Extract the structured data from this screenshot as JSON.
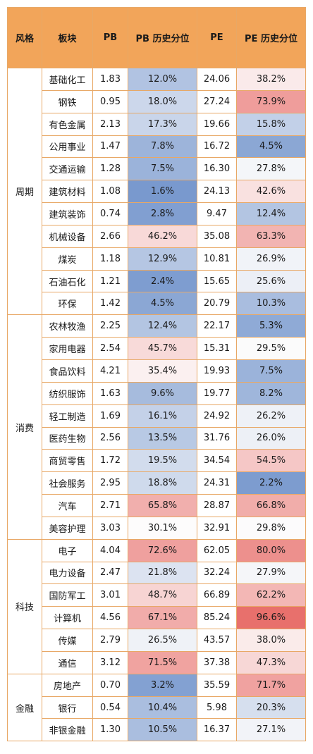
{
  "table": {
    "headers": [
      "风格",
      "板块",
      "PB",
      "PB 历史分位",
      "PE",
      "PE 历史分位"
    ],
    "groups": [
      {
        "style": "周期",
        "rows": [
          [
            "基础化工",
            "1.83",
            "12.0%",
            "24.06",
            "38.2%"
          ],
          [
            "钢铁",
            "0.95",
            "18.0%",
            "27.24",
            "73.9%"
          ],
          [
            "有色金属",
            "2.13",
            "17.3%",
            "19.66",
            "15.8%"
          ],
          [
            "公用事业",
            "1.47",
            "7.8%",
            "16.72",
            "4.5%"
          ],
          [
            "交通运输",
            "1.28",
            "7.5%",
            "16.30",
            "27.8%"
          ],
          [
            "建筑材料",
            "1.08",
            "1.6%",
            "24.13",
            "42.6%"
          ],
          [
            "建筑装饰",
            "0.74",
            "2.8%",
            "9.47",
            "12.4%"
          ],
          [
            "机械设备",
            "2.66",
            "46.2%",
            "35.08",
            "63.3%"
          ],
          [
            "煤炭",
            "1.18",
            "12.9%",
            "10.81",
            "26.9%"
          ],
          [
            "石油石化",
            "1.21",
            "2.4%",
            "15.65",
            "25.6%"
          ],
          [
            "环保",
            "1.42",
            "4.5%",
            "20.79",
            "10.3%"
          ]
        ]
      },
      {
        "style": "消费",
        "rows": [
          [
            "农林牧渔",
            "2.25",
            "12.4%",
            "22.17",
            "5.3%"
          ],
          [
            "家用电器",
            "2.54",
            "45.7%",
            "15.31",
            "29.5%"
          ],
          [
            "食品饮料",
            "4.21",
            "35.4%",
            "19.93",
            "7.5%"
          ],
          [
            "纺织服饰",
            "1.63",
            "9.6%",
            "19.77",
            "8.2%"
          ],
          [
            "轻工制造",
            "1.69",
            "16.1%",
            "24.92",
            "26.2%"
          ],
          [
            "医药生物",
            "2.56",
            "13.5%",
            "31.76",
            "26.0%"
          ],
          [
            "商贸零售",
            "1.72",
            "19.5%",
            "34.54",
            "54.5%"
          ],
          [
            "社会服务",
            "2.95",
            "18.8%",
            "24.31",
            "2.2%"
          ],
          [
            "汽车",
            "2.71",
            "65.8%",
            "28.87",
            "66.8%"
          ],
          [
            "美容护理",
            "3.03",
            "30.1%",
            "32.91",
            "29.8%"
          ]
        ]
      },
      {
        "style": "科技",
        "rows": [
          [
            "电子",
            "4.04",
            "72.6%",
            "62.05",
            "80.0%"
          ],
          [
            "电力设备",
            "2.47",
            "21.8%",
            "32.24",
            "27.9%"
          ],
          [
            "国防军工",
            "3.01",
            "48.7%",
            "66.89",
            "62.2%"
          ],
          [
            "计算机",
            "4.56",
            "67.1%",
            "85.24",
            "96.6%"
          ],
          [
            "传媒",
            "2.79",
            "26.5%",
            "43.57",
            "38.0%"
          ],
          [
            "通信",
            "3.12",
            "71.5%",
            "37.38",
            "47.3%"
          ]
        ]
      },
      {
        "style": "金融",
        "rows": [
          [
            "房地产",
            "0.70",
            "3.2%",
            "35.59",
            "71.7%"
          ],
          [
            "银行",
            "0.54",
            "10.4%",
            "5.98",
            "20.3%"
          ],
          [
            "非银金融",
            "1.30",
            "10.5%",
            "16.37",
            "27.1%"
          ]
        ]
      }
    ]
  }
}
